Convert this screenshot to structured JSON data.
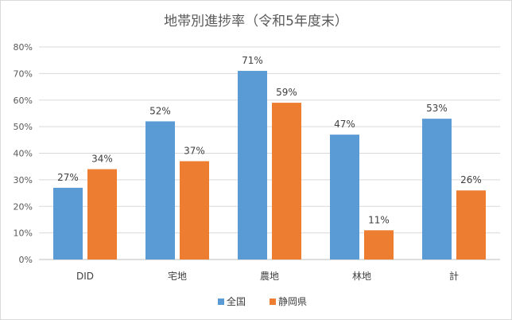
{
  "chart_data": {
    "type": "bar",
    "title": "地帯別進捗率（令和5年度末）",
    "categories": [
      "DID",
      "宅地",
      "農地",
      "林地",
      "計"
    ],
    "series": [
      {
        "name": "全国",
        "values": [
          27,
          52,
          71,
          47,
          53
        ],
        "labels": [
          "27%",
          "52%",
          "71%",
          "47%",
          "53%"
        ],
        "color": "#5b9bd5"
      },
      {
        "name": "静岡県",
        "values": [
          34,
          37,
          59,
          11,
          26
        ],
        "labels": [
          "34%",
          "37%",
          "59%",
          "11%",
          "26%"
        ],
        "color": "#ed7d31"
      }
    ],
    "ylim": [
      0,
      80
    ],
    "yticks": [
      "0%",
      "10%",
      "20%",
      "30%",
      "40%",
      "50%",
      "60%",
      "70%",
      "80%"
    ],
    "grid": true,
    "legend": "bottom"
  }
}
